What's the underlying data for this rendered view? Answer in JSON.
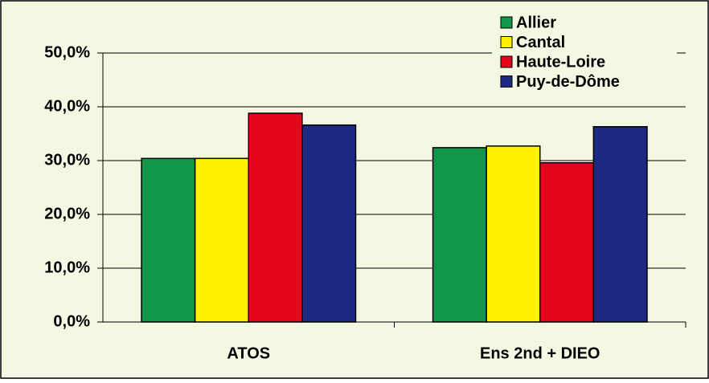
{
  "chart_data": {
    "type": "bar",
    "categories": [
      "ATOS",
      "Ens 2nd + DIEO"
    ],
    "series": [
      {
        "name": "Allier",
        "color": "#12974a",
        "values": [
          30.4,
          32.4
        ]
      },
      {
        "name": "Cantal",
        "color": "#fff200",
        "values": [
          30.4,
          32.7
        ]
      },
      {
        "name": "Haute-Loire",
        "color": "#e3061c",
        "values": [
          38.8,
          29.6
        ]
      },
      {
        "name": "Puy-de-Dôme",
        "color": "#1c2a84",
        "values": [
          36.6,
          36.3
        ]
      }
    ],
    "ylim": [
      0,
      50
    ],
    "yticks": [
      {
        "value": 0,
        "label": "0,0%"
      },
      {
        "value": 10,
        "label": "10,0%"
      },
      {
        "value": 20,
        "label": "20,0%"
      },
      {
        "value": 30,
        "label": "30,0%"
      },
      {
        "value": 40,
        "label": "40,0%"
      },
      {
        "value": 50,
        "label": "50,0%"
      }
    ],
    "grid": true,
    "legend": "top-right"
  }
}
